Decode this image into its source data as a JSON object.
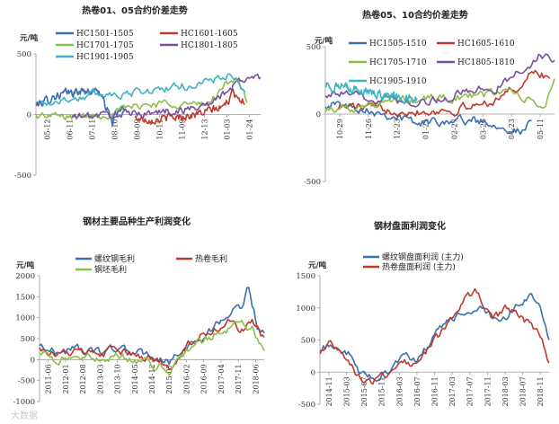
{
  "watermark": "大数据",
  "chart_data": [
    {
      "id": "c1",
      "type": "line",
      "title": "热卷01、05合约价差走势",
      "unit": "元/吨",
      "ylim": [
        -500,
        500
      ],
      "yticks": [
        "500",
        "0",
        "-500"
      ],
      "yvals": [
        500,
        0,
        -500
      ],
      "xticks": [
        "05-12",
        "06-11",
        "07-11",
        "08-10",
        "09-09",
        "10-11",
        "11-09",
        "12-13",
        "01-03",
        "01-24"
      ],
      "legend_position": "top",
      "series": [
        {
          "name": "HC1501-1505",
          "color": "#3a6fb0",
          "start": 0.0,
          "end": 0.4,
          "anchors": [
            [
              0,
              80
            ],
            [
              0.1,
              110
            ],
            [
              0.2,
              150
            ],
            [
              0.3,
              170
            ],
            [
              0.5,
              190
            ],
            [
              0.7,
              200
            ],
            [
              0.85,
              -60
            ],
            [
              0.95,
              40
            ],
            [
              1,
              60
            ]
          ]
        },
        {
          "name": "HC1601-1605",
          "color": "#c0392b",
          "start": 0.44,
          "end": 0.93,
          "anchors": [
            [
              0,
              -30
            ],
            [
              0.2,
              -40
            ],
            [
              0.4,
              -20
            ],
            [
              0.6,
              10
            ],
            [
              0.8,
              60
            ],
            [
              0.9,
              180
            ],
            [
              1,
              100
            ]
          ]
        },
        {
          "name": "HC1701-1705",
          "color": "#8cbf46",
          "start": 0.0,
          "end": 0.94,
          "anchors": [
            [
              0,
              -10
            ],
            [
              0.2,
              -20
            ],
            [
              0.35,
              10
            ],
            [
              0.5,
              80
            ],
            [
              0.65,
              100
            ],
            [
              0.8,
              70
            ],
            [
              0.9,
              250
            ],
            [
              0.95,
              320
            ],
            [
              1,
              100
            ]
          ]
        },
        {
          "name": "HC1801-1805",
          "color": "#7b4ea3",
          "start": 0.16,
          "end": 1.0,
          "anchors": [
            [
              0,
              -20
            ],
            [
              0.2,
              0
            ],
            [
              0.4,
              10
            ],
            [
              0.6,
              40
            ],
            [
              0.75,
              100
            ],
            [
              0.85,
              230
            ],
            [
              0.92,
              300
            ],
            [
              1,
              310
            ]
          ]
        },
        {
          "name": "HC1901-1905",
          "color": "#3fb5c4",
          "start": 0.02,
          "end": 0.93,
          "anchors": [
            [
              0,
              90
            ],
            [
              0.15,
              130
            ],
            [
              0.3,
              170
            ],
            [
              0.45,
              180
            ],
            [
              0.6,
              210
            ],
            [
              0.75,
              240
            ],
            [
              0.85,
              290
            ],
            [
              0.93,
              330
            ],
            [
              1,
              160
            ]
          ]
        }
      ]
    },
    {
      "id": "c2",
      "type": "line",
      "title": "热卷05、10合约价差走势",
      "unit": "元/吨",
      "ylim": [
        -500,
        500
      ],
      "yticks": [
        "500",
        "0",
        "-500"
      ],
      "yvals": [
        500,
        0,
        -500
      ],
      "xticks": [
        "10-29",
        "11-26",
        "12-23",
        "01-21",
        "02-27",
        "03-26",
        "04-23",
        "05-11"
      ],
      "legend_position": "top",
      "series": [
        {
          "name": "HC1505-1510",
          "color": "#3a6fb0",
          "start": 0.0,
          "end": 0.9,
          "anchors": [
            [
              0,
              80
            ],
            [
              0.2,
              40
            ],
            [
              0.35,
              -20
            ],
            [
              0.45,
              -70
            ],
            [
              0.6,
              -40
            ],
            [
              0.75,
              -50
            ],
            [
              0.85,
              -80
            ],
            [
              0.95,
              -140
            ],
            [
              1,
              -60
            ]
          ]
        },
        {
          "name": "HC1605-1610",
          "color": "#c0392b",
          "start": 0.05,
          "end": 0.98,
          "anchors": [
            [
              0,
              60
            ],
            [
              0.2,
              40
            ],
            [
              0.4,
              20
            ],
            [
              0.55,
              30
            ],
            [
              0.7,
              80
            ],
            [
              0.85,
              200
            ],
            [
              0.93,
              320
            ],
            [
              1,
              260
            ]
          ]
        },
        {
          "name": "HC1705-1710",
          "color": "#8cbf46",
          "start": 0.0,
          "end": 1.0,
          "anchors": [
            [
              0,
              40
            ],
            [
              0.2,
              60
            ],
            [
              0.35,
              100
            ],
            [
              0.5,
              120
            ],
            [
              0.65,
              130
            ],
            [
              0.8,
              180
            ],
            [
              0.9,
              80
            ],
            [
              0.96,
              60
            ],
            [
              1,
              260
            ]
          ]
        },
        {
          "name": "HC1805-1810",
          "color": "#7b4ea3",
          "start": 0.0,
          "end": 1.0,
          "anchors": [
            [
              0,
              160
            ],
            [
              0.15,
              130
            ],
            [
              0.3,
              110
            ],
            [
              0.45,
              90
            ],
            [
              0.6,
              160
            ],
            [
              0.75,
              200
            ],
            [
              0.85,
              320
            ],
            [
              0.93,
              430
            ],
            [
              1,
              400
            ]
          ]
        },
        {
          "name": "HC1905-1910",
          "color": "#3fb5c4",
          "start": 0.0,
          "end": 0.4,
          "anchors": [
            [
              0,
              220
            ],
            [
              0.2,
              190
            ],
            [
              0.4,
              170
            ],
            [
              0.6,
              150
            ],
            [
              0.8,
              130
            ],
            [
              1,
              110
            ]
          ]
        }
      ]
    },
    {
      "id": "c3",
      "type": "line",
      "title": "钢材主要品种生产利润变化",
      "unit": "元/吨",
      "ylim": [
        -1000,
        2000
      ],
      "yticks": [
        "2000",
        "1500",
        "1000",
        "500",
        "0",
        "-500",
        "-1000"
      ],
      "yvals": [
        2000,
        1500,
        1000,
        500,
        0,
        -500,
        -1000
      ],
      "xticks": [
        "2011-06",
        "2012-01",
        "2012-08",
        "2013-03",
        "2013-10",
        "2014-05",
        "2014-12",
        "2015-07",
        "2016-02",
        "2016-09",
        "2017-04",
        "2017-11",
        "2018-06"
      ],
      "legend_position": "top",
      "series": [
        {
          "name": "螺纹钢毛利",
          "color": "#3a6fb0",
          "start": 0,
          "end": 1,
          "anchors": [
            [
              0,
              350
            ],
            [
              0.08,
              150
            ],
            [
              0.15,
              300
            ],
            [
              0.25,
              150
            ],
            [
              0.33,
              280
            ],
            [
              0.42,
              180
            ],
            [
              0.5,
              100
            ],
            [
              0.58,
              -80
            ],
            [
              0.66,
              300
            ],
            [
              0.72,
              500
            ],
            [
              0.8,
              900
            ],
            [
              0.85,
              1100
            ],
            [
              0.9,
              1300
            ],
            [
              0.93,
              1750
            ],
            [
              0.97,
              800
            ],
            [
              1,
              600
            ]
          ]
        },
        {
          "name": "热卷毛利",
          "color": "#c0392b",
          "start": 0,
          "end": 1,
          "anchors": [
            [
              0,
              300
            ],
            [
              0.08,
              120
            ],
            [
              0.15,
              200
            ],
            [
              0.25,
              100
            ],
            [
              0.33,
              220
            ],
            [
              0.42,
              100
            ],
            [
              0.5,
              0
            ],
            [
              0.58,
              -150
            ],
            [
              0.66,
              350
            ],
            [
              0.72,
              600
            ],
            [
              0.8,
              800
            ],
            [
              0.85,
              900
            ],
            [
              0.9,
              700
            ],
            [
              0.95,
              850
            ],
            [
              1,
              500
            ]
          ]
        },
        {
          "name": "钢坯毛利",
          "color": "#8cbf46",
          "start": 0,
          "end": 1,
          "anchors": [
            [
              0,
              150
            ],
            [
              0.08,
              -50
            ],
            [
              0.15,
              100
            ],
            [
              0.25,
              -20
            ],
            [
              0.33,
              120
            ],
            [
              0.42,
              0
            ],
            [
              0.5,
              -120
            ],
            [
              0.58,
              -250
            ],
            [
              0.66,
              250
            ],
            [
              0.72,
              450
            ],
            [
              0.8,
              650
            ],
            [
              0.85,
              800
            ],
            [
              0.9,
              900
            ],
            [
              0.95,
              700
            ],
            [
              1,
              150
            ]
          ]
        }
      ]
    },
    {
      "id": "c4",
      "type": "line",
      "title": "钢材盘面利润变化",
      "unit": "元/吨",
      "ylim": [
        -500,
        1500
      ],
      "yticks": [
        "1500",
        "1000",
        "500",
        "0",
        "-500"
      ],
      "yvals": [
        1500,
        1000,
        500,
        0,
        -500
      ],
      "xticks": [
        "2014-11",
        "2015-03",
        "2015-07",
        "2015-11",
        "2016-03",
        "2016-07",
        "2016-11",
        "2017-03",
        "2017-07",
        "2017-11",
        "2018-03",
        "2018-07",
        "2018-11"
      ],
      "legend_position": "top-left",
      "series": [
        {
          "name": "螺纹钢盘面利润 (主力)",
          "color": "#3a6fb0",
          "start": 0,
          "end": 1,
          "anchors": [
            [
              0,
              300
            ],
            [
              0.05,
              450
            ],
            [
              0.12,
              300
            ],
            [
              0.18,
              -50
            ],
            [
              0.25,
              -100
            ],
            [
              0.3,
              50
            ],
            [
              0.36,
              250
            ],
            [
              0.42,
              150
            ],
            [
              0.48,
              450
            ],
            [
              0.55,
              800
            ],
            [
              0.62,
              900
            ],
            [
              0.7,
              1000
            ],
            [
              0.78,
              700
            ],
            [
              0.85,
              1000
            ],
            [
              0.92,
              1200
            ],
            [
              0.97,
              900
            ],
            [
              1,
              500
            ]
          ]
        },
        {
          "name": "热卷盘面利润 (主力)",
          "color": "#c0392b",
          "start": 0,
          "end": 1,
          "anchors": [
            [
              0,
              250
            ],
            [
              0.05,
              500
            ],
            [
              0.12,
              200
            ],
            [
              0.18,
              -120
            ],
            [
              0.25,
              -150
            ],
            [
              0.3,
              0
            ],
            [
              0.36,
              200
            ],
            [
              0.42,
              100
            ],
            [
              0.48,
              400
            ],
            [
              0.55,
              700
            ],
            [
              0.62,
              1100
            ],
            [
              0.68,
              1250
            ],
            [
              0.75,
              800
            ],
            [
              0.82,
              1000
            ],
            [
              0.9,
              800
            ],
            [
              0.96,
              600
            ],
            [
              1,
              150
            ]
          ]
        }
      ]
    }
  ]
}
